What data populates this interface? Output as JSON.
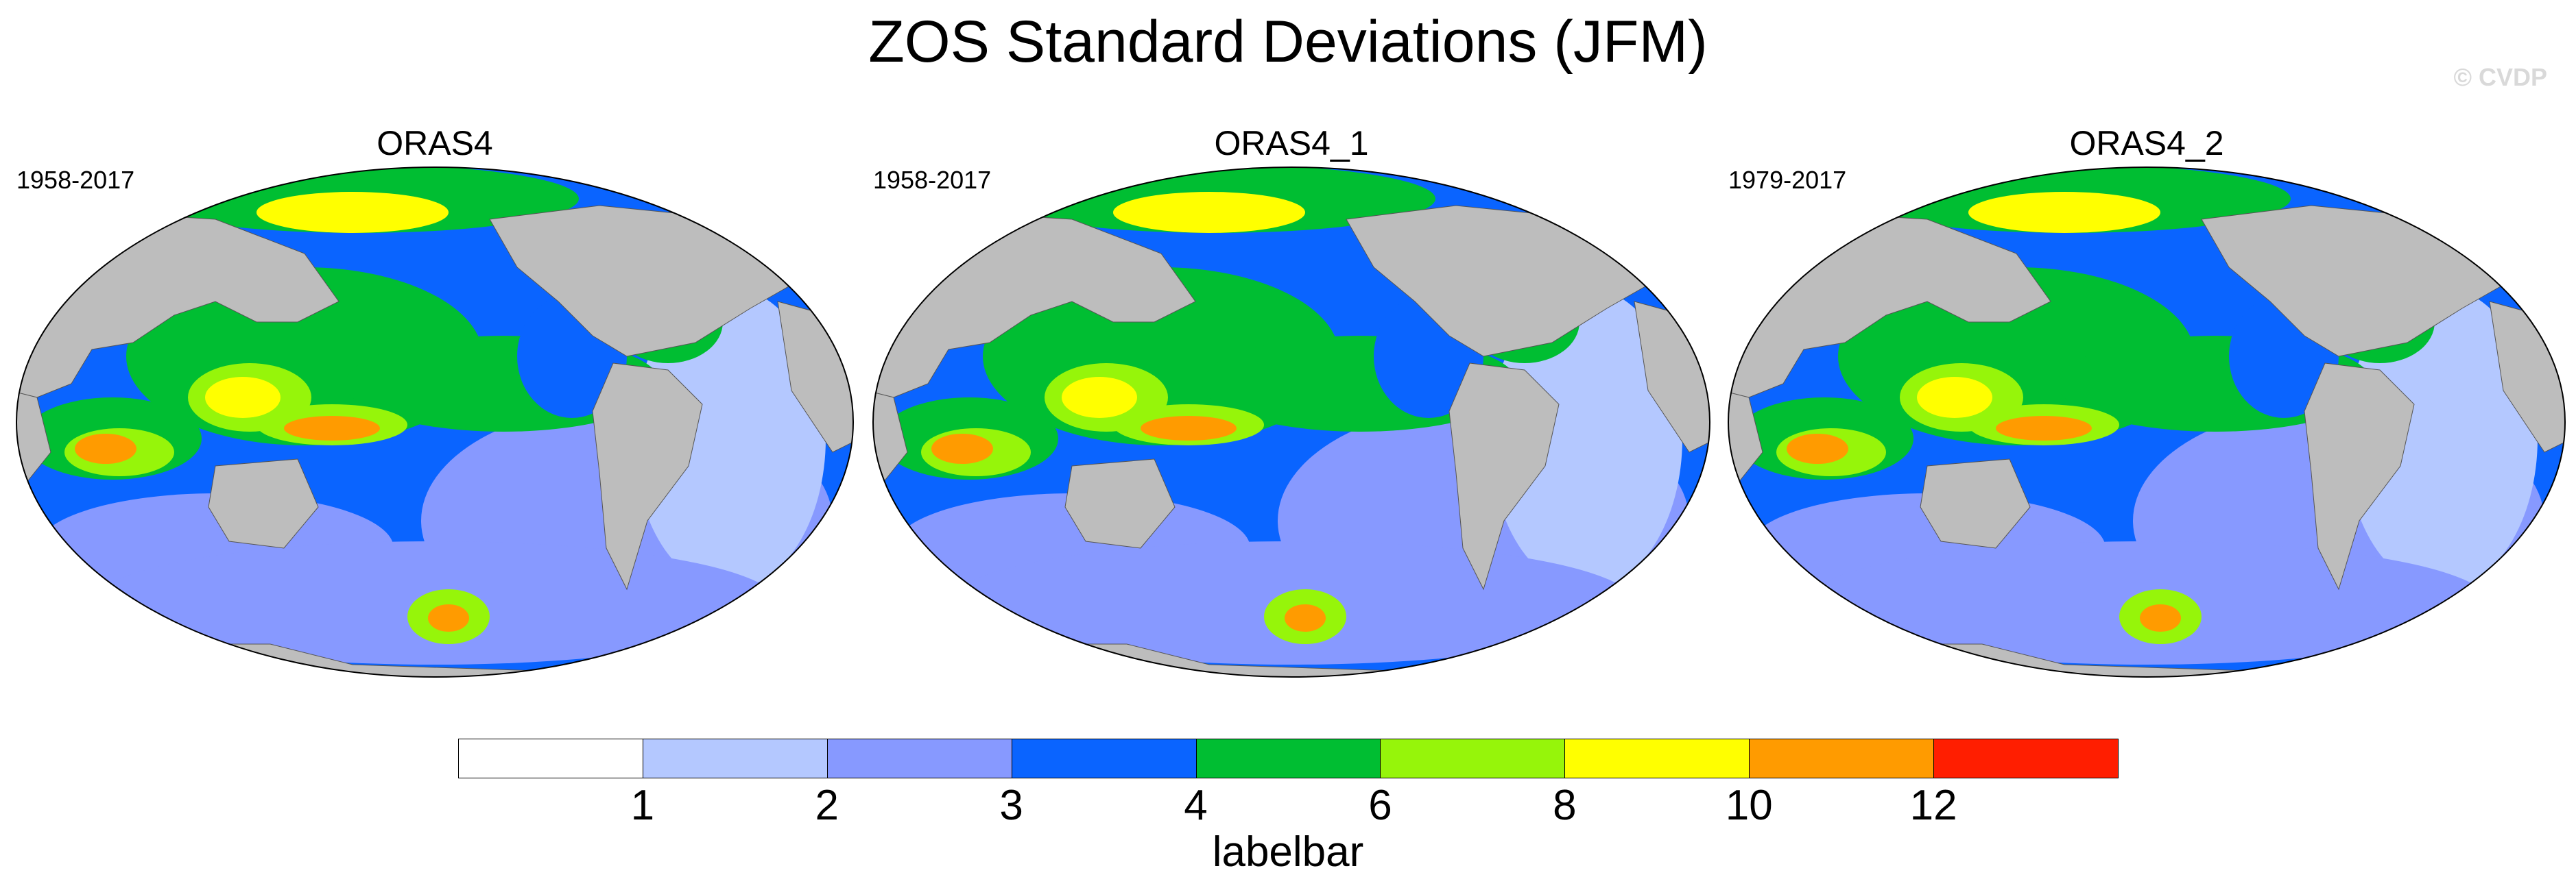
{
  "title": "ZOS Standard Deviations (JFM)",
  "copyright": "© CVDP",
  "panels": [
    {
      "title": "ORAS4",
      "period": "1958-2017"
    },
    {
      "title": "ORAS4_1",
      "period": "1958-2017"
    },
    {
      "title": "ORAS4_2",
      "period": "1979-2017"
    }
  ],
  "labelbar": {
    "title": "labelbar",
    "ticks": [
      "1",
      "2",
      "3",
      "4",
      "6",
      "8",
      "10",
      "12"
    ],
    "colors": [
      "#ffffff",
      "#b4c8ff",
      "#8799ff",
      "#0a64ff",
      "#00be32",
      "#96f50a",
      "#ffff00",
      "#ff9b00",
      "#ff1e00"
    ]
  },
  "colors": {
    "land": "#bdbdbd",
    "ocean_background": "#8799ff"
  }
}
